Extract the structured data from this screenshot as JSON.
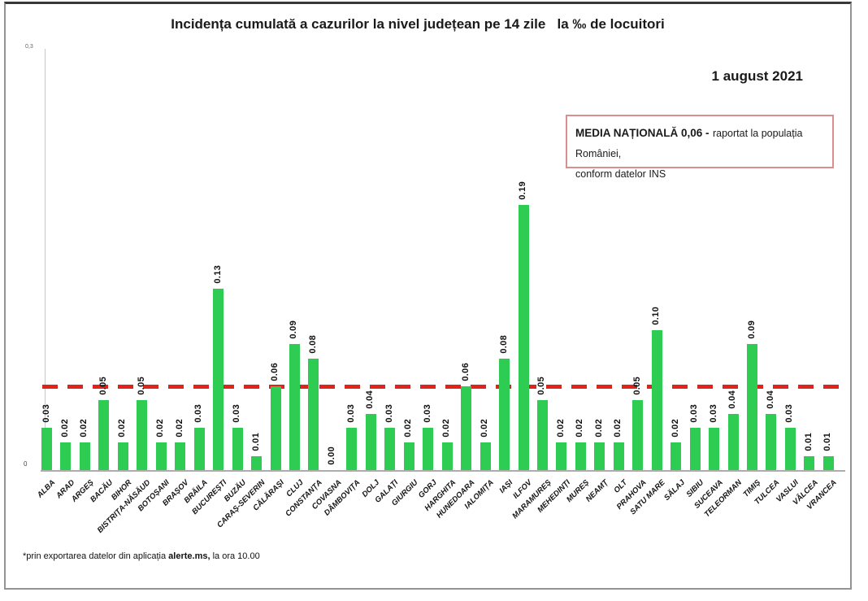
{
  "title": "Incidența cumulată a cazurilor la nivel județean pe 14 zile   la ‰ de locuitori",
  "date_label": "1 august 2021",
  "legend": {
    "bold": "MEDIA NAȚIONALĂ  0,06 -",
    "rest": "raportat la populația României,",
    "line2": "conform datelor INS"
  },
  "y_axis": {
    "max_label": "0,3",
    "zero_label": "0"
  },
  "footnote": {
    "prefix": "*prin exportarea datelor din aplicația ",
    "bold": "alerte.ms,",
    "suffix": " la ora 10.00"
  },
  "chart_data": {
    "type": "bar",
    "title": "Incidența cumulată a cazurilor la nivel județean pe 14 zile la ‰ de locuitori",
    "xlabel": "",
    "ylabel": "",
    "ylim": [
      0,
      0.3
    ],
    "yticks": [
      "0",
      "0,3"
    ],
    "grid": false,
    "bar_color": "#2ecc52",
    "value_label_format": "0.00",
    "legend_position": "top-right",
    "reference_line": {
      "value": 0.06,
      "label": "MEDIA NAȚIONALĂ 0,06 - raportat la populația României, conform datelor INS",
      "color": "#e0241c",
      "style": "dashed"
    },
    "categories": [
      "ALBA",
      "ARAD",
      "ARGEȘ",
      "BACĂU",
      "BIHOR",
      "BISTRIȚA-NĂSĂUD",
      "BOTOȘANI",
      "BRAȘOV",
      "BRĂILA",
      "BUCUREȘTI",
      "BUZĂU",
      "CARAȘ-SEVERIN",
      "CĂLĂRAȘI",
      "CLUJ",
      "CONSTANȚA",
      "COVASNA",
      "DÂMBOVIȚA",
      "DOLJ",
      "GALAȚI",
      "GIURGIU",
      "GORJ",
      "HARGHITA",
      "HUNEDOARA",
      "IALOMIȚA",
      "IAȘI",
      "ILFOV",
      "MARAMUREȘ",
      "MEHEDINȚI",
      "MUREȘ",
      "NEAMȚ",
      "OLT",
      "PRAHOVA",
      "SATU MARE",
      "SĂLAJ",
      "SIBIU",
      "SUCEAVA",
      "TELEORMAN",
      "TIMIȘ",
      "TULCEA",
      "VASLUI",
      "VÂLCEA",
      "VRANCEA"
    ],
    "values": [
      0.03,
      0.02,
      0.02,
      0.05,
      0.02,
      0.05,
      0.02,
      0.02,
      0.03,
      0.13,
      0.03,
      0.01,
      0.06,
      0.09,
      0.08,
      0.0,
      0.03,
      0.04,
      0.03,
      0.02,
      0.03,
      0.02,
      0.06,
      0.02,
      0.08,
      0.19,
      0.05,
      0.02,
      0.02,
      0.02,
      0.02,
      0.05,
      0.1,
      0.02,
      0.03,
      0.03,
      0.04,
      0.09,
      0.04,
      0.03,
      0.01,
      0.01
    ]
  }
}
